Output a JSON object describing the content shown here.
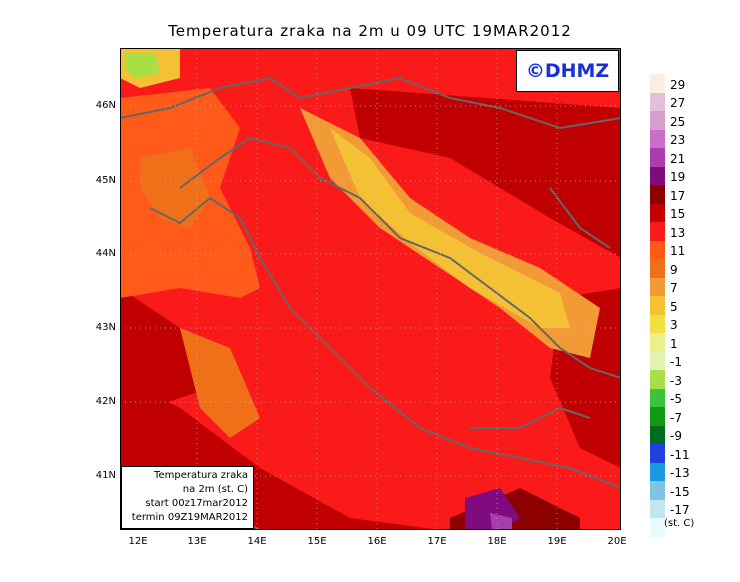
{
  "title": "Temperatura zraka na 2m u 09 UTC 19MAR2012",
  "copyright": "©DHMZ",
  "info": {
    "line1": "Temperatura zraka",
    "line2": "na 2m (st. C)",
    "line3": "start 00z17mar2012",
    "line4": "termin 09Z19MAR2012"
  },
  "axes": {
    "x_ticks": [
      "12E",
      "13E",
      "14E",
      "15E",
      "16E",
      "17E",
      "18E",
      "19E",
      "20E"
    ],
    "y_ticks": [
      "46N",
      "45N",
      "44N",
      "43N",
      "42N",
      "41N"
    ]
  },
  "legend": {
    "unit": "(st. C)",
    "labels": [
      "29",
      "27",
      "25",
      "23",
      "21",
      "19",
      "17",
      "15",
      "13",
      "11",
      "9",
      "7",
      "5",
      "3",
      "1",
      "-1",
      "-3",
      "-5",
      "-7",
      "-9",
      "-11",
      "-13",
      "-15",
      "-17"
    ],
    "colors": [
      "#fdefe0",
      "#e3c0d8",
      "#d79fd0",
      "#c870c8",
      "#a93dae",
      "#7f0b7f",
      "#8c0000",
      "#c00000",
      "#fa1a1a",
      "#ff5a1a",
      "#f0701a",
      "#f29a36",
      "#f4c034",
      "#f0e040",
      "#eaf08c",
      "#e0f4b0",
      "#a6e044",
      "#3ec23e",
      "#109a10",
      "#006c20",
      "#2040e0",
      "#1a98e0",
      "#7fc4e0",
      "#c0e6ee",
      "#e8fafc"
    ],
    "low_color": "#f4fcfc"
  },
  "chart_data": {
    "type": "map",
    "title": "Temperatura zraka na 2m u 09 UTC 19MAR2012",
    "lon_range": [
      11.7,
      20.0
    ],
    "lat_range": [
      40.25,
      46.8
    ],
    "variable": "air temperature at 2m",
    "units": "st. C",
    "dominant_range_c": [
      13,
      17
    ],
    "warmest_area_c": [
      21,
      25
    ],
    "coldest_area_c": [
      -1,
      1
    ]
  }
}
